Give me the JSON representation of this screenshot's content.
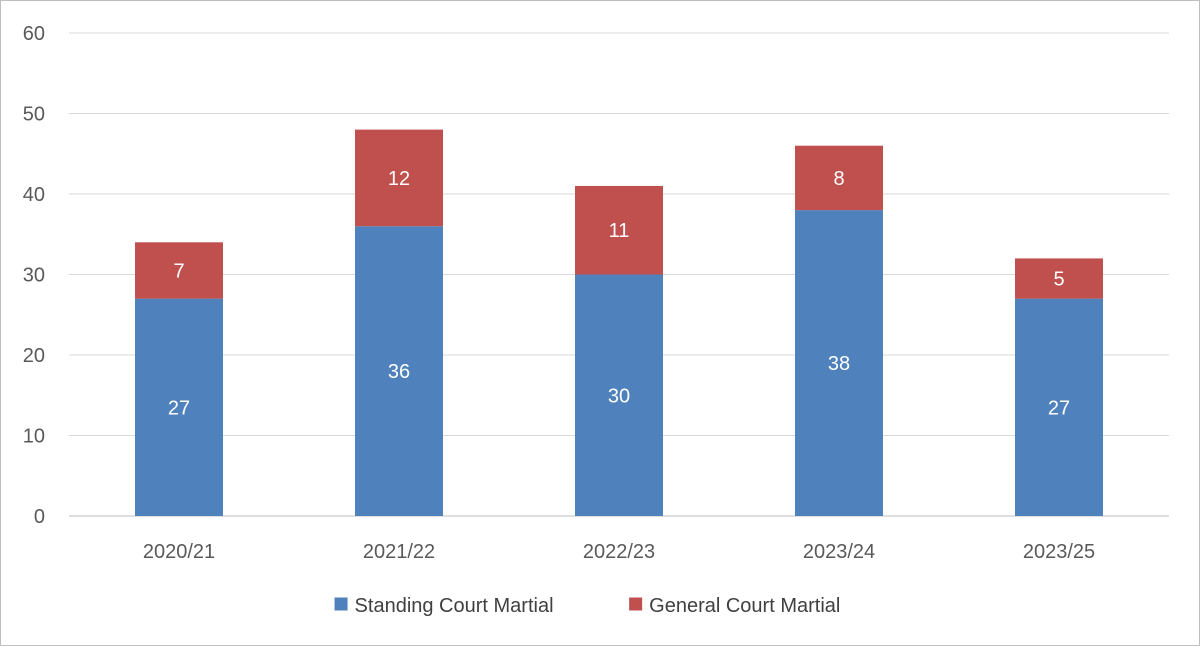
{
  "chart_data": {
    "type": "bar",
    "stacked": true,
    "categories": [
      "2020/21",
      "2021/22",
      "2022/23",
      "2023/24",
      "2023/25"
    ],
    "series": [
      {
        "name": "Standing Court Martial",
        "values": [
          27,
          36,
          30,
          38,
          27
        ],
        "color": "#4F81BD"
      },
      {
        "name": "General Court Martial",
        "values": [
          7,
          12,
          11,
          8,
          5
        ],
        "color": "#C0504D"
      }
    ],
    "ylim": [
      0,
      60
    ],
    "yticks": [
      0,
      10,
      20,
      30,
      40,
      50,
      60
    ],
    "grid": true,
    "legend_position": "bottom",
    "data_labels": true
  }
}
